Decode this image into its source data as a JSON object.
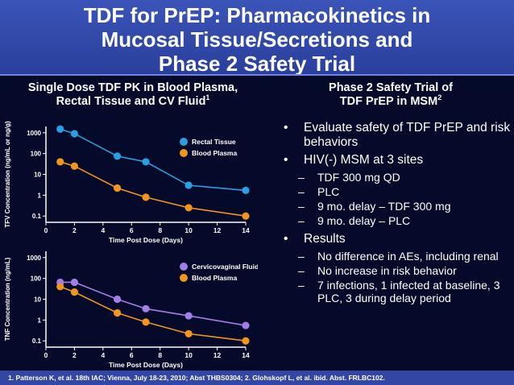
{
  "title": {
    "line1": "TDF for PrEP:  Pharmacokinetics in",
    "line2": "Mucosal Tissue/Secretions and",
    "line3": "Phase 2 Safety Trial"
  },
  "left_heading": {
    "line1": "Single Dose TDF PK in Blood Plasma,",
    "line2": "Rectal Tissue and CV Fluid",
    "sup": "1"
  },
  "right_heading": {
    "line1": "Phase 2 Safety Trial of",
    "line2": "TDF PrEP in MSM",
    "sup": "2"
  },
  "bullets": {
    "b1": "Evaluate safety of TDF PrEP and risk behaviors",
    "b2": "HIV(-) MSM at 3 sites",
    "b2_sub": [
      "TDF 300 mg QD",
      "PLC",
      "9 mo. delay – TDF 300 mg",
      "9 mo. delay – PLC"
    ],
    "b3": " Results",
    "b3_sub": [
      "No difference in AEs, including renal",
      "No increase in risk behavior",
      "7 infections, 1 infected at baseline, 3 PLC, 3 during delay period"
    ]
  },
  "footer": "1. Patterson K, et al. 18th IAC; Vienna, July 18-23, 2010; Abst THBS0304; 2. Glohskopf L, et al. ibid. Abst. FRLBC102.",
  "colors": {
    "header_bg": "#3b54b8",
    "background": "#050a2a",
    "blue": "#2a9fe0",
    "orange": "#f0951e",
    "purple": "#a37ee6",
    "footer_bg": "#3346a3"
  },
  "chart_data": [
    {
      "type": "line",
      "xlabel": "Time Post Dose (Days)",
      "ylabel": "TFV Concentration (ng/mL or ng/g)",
      "yscale": "log",
      "ylim": [
        0.05,
        2000
      ],
      "xlim": [
        0,
        14
      ],
      "xticks": [
        "0",
        "2",
        "4",
        "6",
        "8",
        "10",
        "12",
        "14"
      ],
      "yticks": [
        "0.1",
        "1",
        "10",
        "100",
        "1000"
      ],
      "legend_position": "top-right",
      "series": [
        {
          "name": "Rectal Tissue",
          "color": "#2a9fe0",
          "x": [
            1,
            2,
            5,
            7,
            10,
            14
          ],
          "y": [
            1500,
            900,
            75,
            40,
            3,
            1.7
          ]
        },
        {
          "name": "Blood Plasma",
          "color": "#f0951e",
          "x": [
            1,
            2,
            5,
            7,
            10,
            14
          ],
          "y": [
            40,
            25,
            2.2,
            0.8,
            0.25,
            0.1
          ]
        }
      ]
    },
    {
      "type": "line",
      "xlabel": "Time Post Dose (Days)",
      "ylabel": "TNF Concentration (ng/mL)",
      "yscale": "log",
      "ylim": [
        0.05,
        2000
      ],
      "xlim": [
        0,
        14
      ],
      "xticks": [
        "0",
        "2",
        "4",
        "6",
        "8",
        "10",
        "12",
        "14"
      ],
      "yticks": [
        "0.1",
        "1",
        "10",
        "100",
        "1000"
      ],
      "legend_position": "top-right",
      "series": [
        {
          "name": "Cervicovaginal Fluid",
          "color": "#a37ee6",
          "x": [
            1,
            2,
            5,
            7,
            10,
            14
          ],
          "y": [
            65,
            65,
            10,
            3.5,
            1.6,
            0.55
          ]
        },
        {
          "name": "Blood Plasma",
          "color": "#f0951e",
          "x": [
            1,
            2,
            5,
            7,
            10,
            14
          ],
          "y": [
            40,
            22,
            2.2,
            0.8,
            0.22,
            0.1
          ]
        }
      ]
    }
  ]
}
